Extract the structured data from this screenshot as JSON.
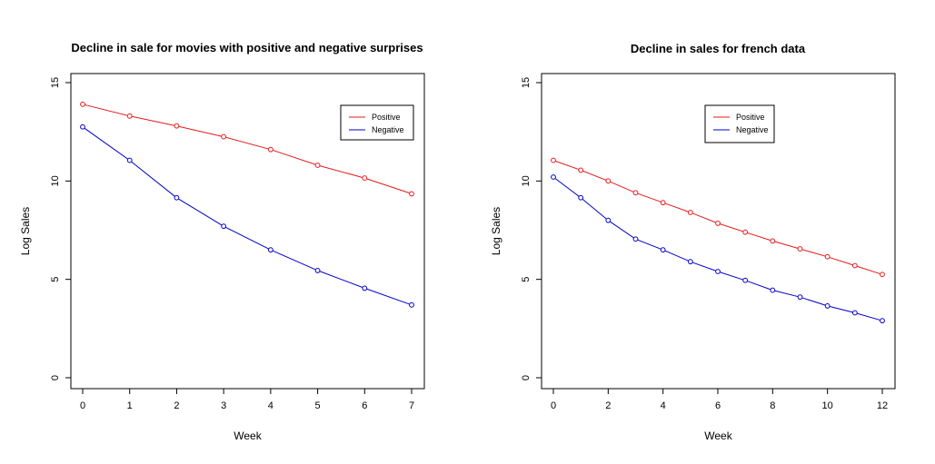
{
  "colors": {
    "positive": "#e41a1c",
    "negative": "#0000cc",
    "frame": "#000000"
  },
  "chart_data": [
    {
      "type": "line",
      "title": "Decline in sale for movies with positive and negative surprises",
      "xlabel": "Week",
      "ylabel": "Log Sales",
      "xlim": [
        0,
        7
      ],
      "ylim": [
        0,
        15
      ],
      "x_ticks": [
        0,
        1,
        2,
        3,
        4,
        5,
        6,
        7
      ],
      "y_ticks": [
        0,
        5,
        10,
        15
      ],
      "x": [
        0,
        1,
        2,
        3,
        4,
        5,
        6,
        7
      ],
      "series": [
        {
          "name": "Positive",
          "color": "#e41a1c",
          "values": [
            13.9,
            13.3,
            12.8,
            12.25,
            11.6,
            10.8,
            10.15,
            9.35
          ]
        },
        {
          "name": "Negative",
          "color": "#0000cc",
          "values": [
            12.75,
            11.05,
            9.15,
            7.7,
            6.5,
            5.45,
            4.55,
            3.7
          ]
        }
      ],
      "legend": "top-right",
      "grid": false
    },
    {
      "type": "line",
      "title": "Decline in sales for french data",
      "xlabel": "Week",
      "ylabel": "Log Sales",
      "xlim": [
        0,
        12
      ],
      "ylim": [
        0,
        15
      ],
      "x_ticks": [
        0,
        2,
        4,
        6,
        8,
        10,
        12
      ],
      "y_ticks": [
        0,
        5,
        10,
        15
      ],
      "x": [
        0,
        1,
        2,
        3,
        4,
        5,
        6,
        7,
        8,
        9,
        10,
        11,
        12
      ],
      "series": [
        {
          "name": "Positive",
          "color": "#e41a1c",
          "values": [
            11.05,
            10.55,
            10.0,
            9.4,
            8.9,
            8.4,
            7.85,
            7.4,
            6.95,
            6.55,
            6.15,
            5.7,
            5.25
          ]
        },
        {
          "name": "Negative",
          "color": "#0000cc",
          "values": [
            10.2,
            9.15,
            8.0,
            7.05,
            6.5,
            5.9,
            5.4,
            4.95,
            4.45,
            4.1,
            3.65,
            3.3,
            2.9
          ]
        }
      ],
      "legend": "top-center",
      "grid": false
    }
  ]
}
